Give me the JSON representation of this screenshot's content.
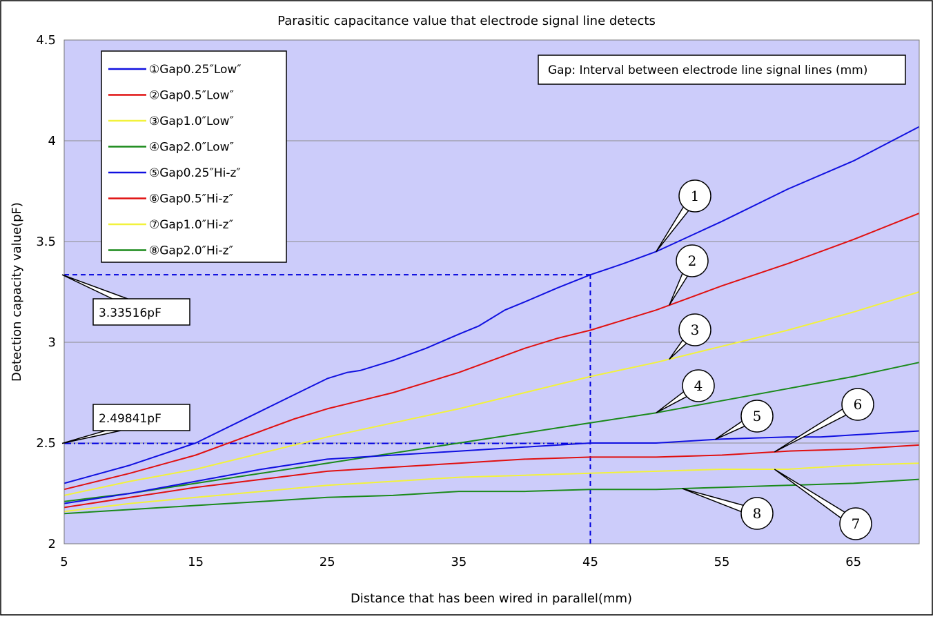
{
  "chart_data": {
    "type": "line",
    "title": "Parasitic capacitance value that electrode signal line detects",
    "xlabel": "Distance that has been wired in parallel(mm)",
    "ylabel": "Detection capacity value(pF)",
    "xlim": [
      5,
      70
    ],
    "ylim": [
      2,
      4.5
    ],
    "xticks": [
      5,
      15,
      25,
      35,
      45,
      55,
      65
    ],
    "xtick_labels": [
      "5",
      "15",
      "25",
      "35",
      "45",
      "55",
      "65"
    ],
    "yticks": [
      2,
      2.5,
      3,
      3.5,
      4,
      4.5
    ],
    "ytick_labels": [
      "2",
      "2.5",
      "3",
      "3.5",
      "4",
      "4.5"
    ],
    "grid": "horizontal",
    "plot_background": "#ccccfa",
    "legend_position": "top-left",
    "note": "Gap: Interval between electrode line signal lines (mm)",
    "annotations": [
      {
        "text": "3.33516pF",
        "x": 5,
        "y": 3.33516
      },
      {
        "text": "2.49841pF",
        "x": 5,
        "y": 2.49841
      }
    ],
    "reference_lines": [
      {
        "kind": "hline",
        "y": 3.33516,
        "x_from": 5,
        "x_to": 45,
        "color": "#0000dd"
      },
      {
        "kind": "vline",
        "x": 45,
        "y_from": 2,
        "y_to": 3.33516,
        "color": "#0000dd"
      },
      {
        "kind": "hline",
        "y": 2.49841,
        "x_from": 5,
        "x_to": 45,
        "color": "#0000dd"
      }
    ],
    "series": [
      {
        "name": "①Gap0.25″Low″",
        "color": "#1010e0",
        "callout": "1",
        "callout_at_x": 50,
        "x": [
          5,
          10,
          15,
          20,
          22.5,
          25,
          26.5,
          27.5,
          30,
          32.5,
          35,
          36.5,
          37.5,
          38.5,
          40,
          42.5,
          45,
          47.5,
          50,
          55,
          60,
          65,
          70
        ],
        "y": [
          2.3,
          2.39,
          2.5,
          2.66,
          2.74,
          2.82,
          2.85,
          2.86,
          2.91,
          2.97,
          3.04,
          3.08,
          3.12,
          3.16,
          3.2,
          3.27,
          3.335,
          3.39,
          3.45,
          3.6,
          3.76,
          3.9,
          4.07
        ]
      },
      {
        "name": "②Gap0.5″Low″",
        "color": "#e01010",
        "callout": "2",
        "callout_at_x": 51,
        "x": [
          5,
          10,
          15,
          20,
          22.5,
          25,
          27.5,
          30,
          32.5,
          35,
          37.5,
          40,
          42.5,
          45,
          50,
          55,
          60,
          65,
          70
        ],
        "y": [
          2.27,
          2.35,
          2.44,
          2.56,
          2.62,
          2.67,
          2.71,
          2.75,
          2.8,
          2.85,
          2.91,
          2.97,
          3.02,
          3.06,
          3.16,
          3.28,
          3.39,
          3.51,
          3.64
        ]
      },
      {
        "name": "③Gap1.0″Low″",
        "color": "#f2f23c",
        "callout": "3",
        "callout_at_x": 51,
        "x": [
          5,
          10,
          15,
          20,
          25,
          30,
          35,
          40,
          45,
          50,
          55,
          60,
          65,
          70
        ],
        "y": [
          2.24,
          2.31,
          2.37,
          2.45,
          2.53,
          2.6,
          2.67,
          2.75,
          2.83,
          2.9,
          2.98,
          3.06,
          3.15,
          3.25
        ]
      },
      {
        "name": "④Gap2.0″Low″",
        "color": "#1a8a1a",
        "callout": "4",
        "callout_at_x": 50,
        "x": [
          5,
          10,
          15,
          20,
          25,
          30,
          35,
          40,
          45,
          50,
          55,
          60,
          65,
          70
        ],
        "y": [
          2.21,
          2.25,
          2.3,
          2.35,
          2.4,
          2.45,
          2.5,
          2.55,
          2.6,
          2.65,
          2.71,
          2.77,
          2.83,
          2.9
        ]
      },
      {
        "name": "⑤Gap0.25″Hi-z″",
        "color": "#1010e0",
        "callout": "5",
        "callout_at_x": 54.5,
        "x": [
          5,
          10,
          15,
          20,
          25,
          30,
          35,
          40,
          45,
          50,
          55,
          60,
          62.5,
          65,
          67.5,
          70
        ],
        "y": [
          2.2,
          2.25,
          2.31,
          2.37,
          2.42,
          2.44,
          2.46,
          2.48,
          2.5,
          2.5,
          2.52,
          2.53,
          2.53,
          2.54,
          2.55,
          2.56
        ]
      },
      {
        "name": "⑥Gap0.5″Hi-z″",
        "color": "#e01010",
        "callout": "6",
        "callout_at_x": 59,
        "x": [
          5,
          10,
          15,
          20,
          25,
          30,
          35,
          37.5,
          40,
          45,
          50,
          55,
          60,
          65,
          70
        ],
        "y": [
          2.18,
          2.23,
          2.28,
          2.32,
          2.36,
          2.38,
          2.4,
          2.41,
          2.42,
          2.43,
          2.43,
          2.44,
          2.46,
          2.47,
          2.49
        ]
      },
      {
        "name": "⑦Gap1.0″Hi-z″",
        "color": "#f2f23c",
        "callout": "7",
        "callout_at_x": 59,
        "x": [
          5,
          10,
          15,
          20,
          25,
          30,
          35,
          40,
          45,
          50,
          55,
          60,
          65,
          70
        ],
        "y": [
          2.16,
          2.2,
          2.23,
          2.26,
          2.29,
          2.31,
          2.33,
          2.34,
          2.35,
          2.36,
          2.37,
          2.37,
          2.39,
          2.4
        ]
      },
      {
        "name": "⑧Gap2.0″Hi-z″",
        "color": "#1a8a1a",
        "callout": "8",
        "callout_at_x": 52,
        "x": [
          5,
          10,
          15,
          20,
          25,
          30,
          35,
          40,
          45,
          50,
          55,
          60,
          65,
          70
        ],
        "y": [
          2.15,
          2.17,
          2.19,
          2.21,
          2.23,
          2.24,
          2.26,
          2.26,
          2.27,
          2.27,
          2.28,
          2.29,
          2.3,
          2.32
        ]
      }
    ]
  }
}
